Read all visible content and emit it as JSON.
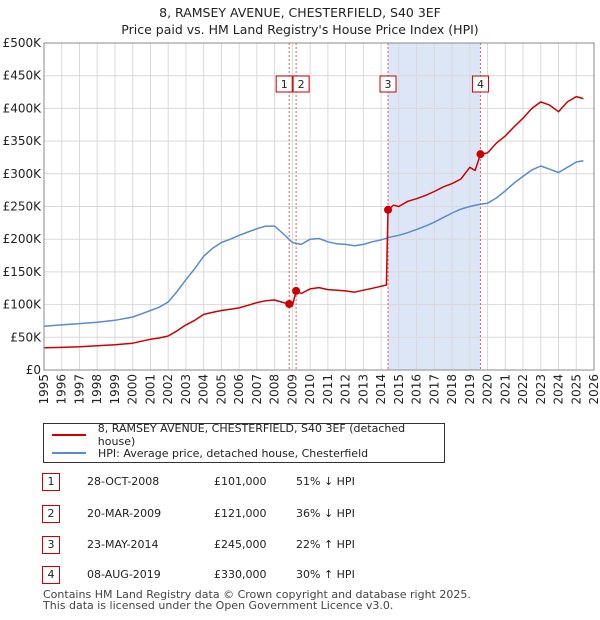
{
  "chart_data": {
    "type": "line",
    "title": "8, RAMSEY AVENUE, CHESTERFIELD, S40 3EF",
    "subtitle": "Price paid vs. HM Land Registry's House Price Index (HPI)",
    "xlim": [
      1995,
      2026
    ],
    "ylim": [
      0,
      500000
    ],
    "x_ticks": [
      "1995",
      "1996",
      "1997",
      "1998",
      "1999",
      "2000",
      "2001",
      "2002",
      "2003",
      "2004",
      "2005",
      "2006",
      "2007",
      "2008",
      "2009",
      "2010",
      "2011",
      "2012",
      "2013",
      "2014",
      "2015",
      "2016",
      "2017",
      "2018",
      "2019",
      "2020",
      "2021",
      "2022",
      "2023",
      "2024",
      "2025",
      "2026"
    ],
    "y_ticks": [
      {
        "value": 0,
        "label": "£0"
      },
      {
        "value": 50000,
        "label": "£50K"
      },
      {
        "value": 100000,
        "label": "£100K"
      },
      {
        "value": 150000,
        "label": "£150K"
      },
      {
        "value": 200000,
        "label": "£200K"
      },
      {
        "value": 250000,
        "label": "£250K"
      },
      {
        "value": 300000,
        "label": "£300K"
      },
      {
        "value": 350000,
        "label": "£350K"
      },
      {
        "value": 400000,
        "label": "£400K"
      },
      {
        "value": 450000,
        "label": "£450K"
      },
      {
        "value": 500000,
        "label": "£500K"
      }
    ],
    "grid": true,
    "shaded_ranges": [
      [
        2014.39,
        2019.6
      ]
    ],
    "series": [
      {
        "name": "8, RAMSEY AVENUE, CHESTERFIELD, S40 3EF (detached house)",
        "color": "#cc0000",
        "points": [
          [
            1995.0,
            34000
          ],
          [
            1996.0,
            34500
          ],
          [
            1997.0,
            35500
          ],
          [
            1998.0,
            37000
          ],
          [
            1999.0,
            38500
          ],
          [
            2000.0,
            41000
          ],
          [
            2000.5,
            44000
          ],
          [
            2001.0,
            47000
          ],
          [
            2001.5,
            49000
          ],
          [
            2002.0,
            52000
          ],
          [
            2002.5,
            60000
          ],
          [
            2003.0,
            69000
          ],
          [
            2003.5,
            76000
          ],
          [
            2004.0,
            85000
          ],
          [
            2004.5,
            88000
          ],
          [
            2005.0,
            91000
          ],
          [
            2005.5,
            93000
          ],
          [
            2006.0,
            95000
          ],
          [
            2006.5,
            99000
          ],
          [
            2007.0,
            103000
          ],
          [
            2007.5,
            106000
          ],
          [
            2008.0,
            107000
          ],
          [
            2008.5,
            103000
          ],
          [
            2008.82,
            101000
          ],
          [
            2009.0,
            98000
          ],
          [
            2009.21,
            121000
          ],
          [
            2009.5,
            117000
          ],
          [
            2010.0,
            124000
          ],
          [
            2010.5,
            126000
          ],
          [
            2011.0,
            123000
          ],
          [
            2011.5,
            122000
          ],
          [
            2012.0,
            121000
          ],
          [
            2012.5,
            119000
          ],
          [
            2013.0,
            122000
          ],
          [
            2013.5,
            125000
          ],
          [
            2014.0,
            128000
          ],
          [
            2014.3,
            130000
          ],
          [
            2014.39,
            245000
          ],
          [
            2014.7,
            252000
          ],
          [
            2015.0,
            250000
          ],
          [
            2015.5,
            258000
          ],
          [
            2016.0,
            262000
          ],
          [
            2016.5,
            267000
          ],
          [
            2017.0,
            273000
          ],
          [
            2017.5,
            280000
          ],
          [
            2018.0,
            285000
          ],
          [
            2018.5,
            292000
          ],
          [
            2019.0,
            310000
          ],
          [
            2019.3,
            305000
          ],
          [
            2019.6,
            330000
          ],
          [
            2020.0,
            332000
          ],
          [
            2020.5,
            347000
          ],
          [
            2021.0,
            358000
          ],
          [
            2021.5,
            372000
          ],
          [
            2022.0,
            385000
          ],
          [
            2022.5,
            400000
          ],
          [
            2023.0,
            410000
          ],
          [
            2023.5,
            405000
          ],
          [
            2024.0,
            395000
          ],
          [
            2024.5,
            410000
          ],
          [
            2025.0,
            418000
          ],
          [
            2025.4,
            415000
          ]
        ]
      },
      {
        "name": "HPI: Average price, detached house, Chesterfield",
        "color": "#5a8ad0",
        "points": [
          [
            1995.0,
            67000
          ],
          [
            1996.0,
            69000
          ],
          [
            1997.0,
            71000
          ],
          [
            1998.0,
            73000
          ],
          [
            1999.0,
            76000
          ],
          [
            2000.0,
            81000
          ],
          [
            2000.5,
            86000
          ],
          [
            2001.0,
            91000
          ],
          [
            2001.5,
            96000
          ],
          [
            2002.0,
            104000
          ],
          [
            2002.5,
            120000
          ],
          [
            2003.0,
            138000
          ],
          [
            2003.5,
            155000
          ],
          [
            2004.0,
            174000
          ],
          [
            2004.5,
            186000
          ],
          [
            2005.0,
            195000
          ],
          [
            2005.5,
            200000
          ],
          [
            2006.0,
            206000
          ],
          [
            2006.5,
            211000
          ],
          [
            2007.0,
            216000
          ],
          [
            2007.5,
            220000
          ],
          [
            2008.0,
            220000
          ],
          [
            2008.5,
            208000
          ],
          [
            2009.0,
            195000
          ],
          [
            2009.5,
            192000
          ],
          [
            2010.0,
            200000
          ],
          [
            2010.5,
            201000
          ],
          [
            2011.0,
            196000
          ],
          [
            2011.5,
            193000
          ],
          [
            2012.0,
            192000
          ],
          [
            2012.5,
            190000
          ],
          [
            2013.0,
            192000
          ],
          [
            2013.5,
            196000
          ],
          [
            2014.0,
            199000
          ],
          [
            2014.5,
            203000
          ],
          [
            2015.0,
            206000
          ],
          [
            2015.5,
            210000
          ],
          [
            2016.0,
            215000
          ],
          [
            2016.5,
            220000
          ],
          [
            2017.0,
            226000
          ],
          [
            2017.5,
            233000
          ],
          [
            2018.0,
            240000
          ],
          [
            2018.5,
            246000
          ],
          [
            2019.0,
            250000
          ],
          [
            2019.5,
            253000
          ],
          [
            2020.0,
            255000
          ],
          [
            2020.5,
            263000
          ],
          [
            2021.0,
            274000
          ],
          [
            2021.5,
            286000
          ],
          [
            2022.0,
            296000
          ],
          [
            2022.5,
            306000
          ],
          [
            2023.0,
            312000
          ],
          [
            2023.5,
            307000
          ],
          [
            2024.0,
            302000
          ],
          [
            2024.5,
            310000
          ],
          [
            2025.0,
            318000
          ],
          [
            2025.4,
            320000
          ]
        ]
      }
    ],
    "sales": [
      {
        "id": "1",
        "date": "28-OCT-2008",
        "x": 2008.82,
        "price": 101000,
        "price_label": "£101,000",
        "hpi_label": "51% ↓ HPI"
      },
      {
        "id": "2",
        "date": "20-MAR-2009",
        "x": 2009.21,
        "price": 121000,
        "price_label": "£121,000",
        "hpi_label": "36% ↓ HPI"
      },
      {
        "id": "3",
        "date": "23-MAY-2014",
        "x": 2014.39,
        "price": 245000,
        "price_label": "£245,000",
        "hpi_label": "22% ↑ HPI"
      },
      {
        "id": "4",
        "date": "08-AUG-2019",
        "x": 2019.6,
        "price": 330000,
        "price_label": "£330,000",
        "hpi_label": "30% ↑ HPI"
      }
    ]
  },
  "legend": {
    "property_label": "8, RAMSEY AVENUE, CHESTERFIELD, S40 3EF (detached house)",
    "hpi_label": "HPI: Average price, detached house, Chesterfield",
    "property_color": "#cc0000",
    "hpi_color": "#5a8ad0"
  },
  "footer": {
    "line1": "Contains HM Land Registry data © Crown copyright and database right 2025.",
    "line2": "This data is licensed under the Open Government Licence v3.0."
  }
}
